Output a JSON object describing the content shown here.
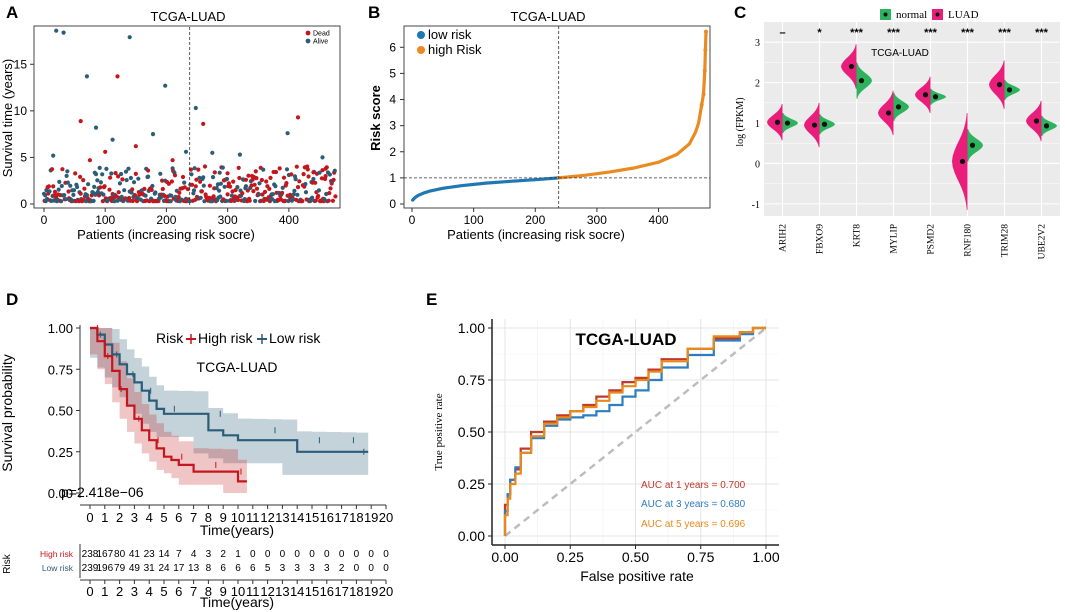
{
  "panels": {
    "A": {
      "letter": "A",
      "title": "TCGA-LUAD",
      "xlabel": "Patients (increasing risk socre)",
      "ylabel": "Survival time (years)",
      "xticks": [
        "0",
        "100",
        "200",
        "300",
        "400"
      ],
      "yticks": [
        "0",
        "5",
        "10",
        "15"
      ],
      "legend": [
        {
          "label": "Dead",
          "color": "#c4161c"
        },
        {
          "label": "Alive",
          "color": "#2a5d78"
        }
      ]
    },
    "B": {
      "letter": "B",
      "title": "TCGA-LUAD",
      "xlabel": "Patients (increasing risk socre)",
      "ylabel": "Risk score",
      "xticks": [
        "0",
        "100",
        "200",
        "300",
        "400"
      ],
      "yticks": [
        "0",
        "1",
        "2",
        "3",
        "4",
        "5",
        "6"
      ],
      "legend": [
        {
          "label": "low risk",
          "color": "#1f77b4"
        },
        {
          "label": "high Risk",
          "color": "#ec8a22"
        }
      ]
    },
    "C": {
      "letter": "C",
      "title": "TCGA-LUAD",
      "ylabel": "log (FPKM)",
      "legend": [
        {
          "label": "normal",
          "color": "#2db35d"
        },
        {
          "label": "LUAD",
          "color": "#e91e7a"
        }
      ],
      "yticks": [
        "-1",
        "0",
        "1",
        "2",
        "3"
      ]
    },
    "D": {
      "letter": "D",
      "title": "TCGA-LUAD",
      "ylabel": "Survival probability",
      "xlabel": "Time(years)",
      "legend_title": "Risk",
      "legend": [
        {
          "label": "High risk",
          "color": "#c4161c"
        },
        {
          "label": "Low risk",
          "color": "#2a5d78"
        }
      ],
      "pvalue": "p=2.418e−06",
      "yticks": [
        "0.00",
        "0.25",
        "0.50",
        "0.75",
        "1.00"
      ],
      "xticks": [
        "0",
        "1",
        "2",
        "3",
        "4",
        "5",
        "6",
        "7",
        "8",
        "9",
        "10",
        "11",
        "12",
        "13",
        "14",
        "15",
        "16",
        "17",
        "18",
        "19",
        "20"
      ],
      "table_ylabel": "Risk",
      "table_xlabel": "Time(years)",
      "table_rows": [
        {
          "label": "High risk",
          "color": "#c4161c",
          "values": [
            "238",
            "167",
            "80",
            "41",
            "23",
            "14",
            "7",
            "4",
            "3",
            "2",
            "1",
            "0",
            "0",
            "0",
            "0",
            "0",
            "0",
            "0",
            "0",
            "0",
            "0"
          ]
        },
        {
          "label": "Low risk",
          "color": "#2a5d78",
          "values": [
            "239",
            "196",
            "79",
            "49",
            "31",
            "24",
            "17",
            "13",
            "8",
            "6",
            "6",
            "6",
            "5",
            "3",
            "3",
            "3",
            "3",
            "2",
            "0",
            "0",
            "0"
          ]
        }
      ]
    },
    "E": {
      "letter": "E",
      "title": "TCGA-LUAD",
      "xlabel": "False positive rate",
      "ylabel": "True positive rate",
      "ticks": [
        "0.00",
        "0.25",
        "0.50",
        "0.75",
        "1.00"
      ],
      "auc": [
        {
          "label": "AUC at 1 years = 0.700",
          "color": "#c0392b"
        },
        {
          "label": "AUC at 3 years = 0.680",
          "color": "#2e7dc0"
        },
        {
          "label": "AUC at 5 years = 0.696",
          "color": "#e88a1a"
        }
      ]
    }
  },
  "chart_data": [
    {
      "type": "scatter",
      "panel": "A",
      "title": "TCGA-LUAD",
      "xlabel": "Patients (increasing risk socre)",
      "ylabel": "Survival time (years)",
      "xlim": [
        0,
        477
      ],
      "ylim": [
        0,
        19
      ],
      "series": [
        {
          "name": "Dead",
          "values": [
            [
              60,
              8.9
            ],
            [
              75,
              4.7
            ],
            [
              120,
              13.7
            ],
            [
              150,
              6.2
            ],
            [
              170,
              3.6
            ],
            [
              260,
              8.6
            ],
            [
              300,
              3.3
            ],
            [
              330,
              2.6
            ],
            [
              415,
              9.3
            ],
            [
              440,
              3.4
            ],
            [
              460,
              3.0
            ],
            [
              100,
              5.6
            ],
            [
              210,
              4.7
            ],
            [
              370,
              2.8
            ]
          ]
        },
        {
          "name": "Alive",
          "values": [
            [
              20,
              18.6
            ],
            [
              32,
              18.4
            ],
            [
              70,
              13.7
            ],
            [
              140,
              17.9
            ],
            [
              198,
              12.7
            ],
            [
              248,
              10.3
            ],
            [
              85,
              8.2
            ],
            [
              178,
              7.5
            ],
            [
              398,
              7.6
            ],
            [
              275,
              5.5
            ],
            [
              112,
              6.9
            ],
            [
              320,
              5.3
            ],
            [
              455,
              5.0
            ],
            [
              15,
              5.2
            ],
            [
              232,
              5.6
            ]
          ]
        }
      ]
    },
    {
      "type": "line",
      "panel": "B",
      "title": "TCGA-LUAD",
      "xlabel": "Patients (increasing risk socre)",
      "ylabel": "Risk score",
      "xlim": [
        0,
        477
      ],
      "ylim": [
        0,
        6.7
      ],
      "cutoff_x": 238,
      "cutoff_y": 1.0,
      "series": [
        {
          "name": "low risk",
          "x": [
            1,
            5,
            10,
            20,
            30,
            50,
            80,
            120,
            160,
            200,
            238
          ],
          "values": [
            0.15,
            0.25,
            0.33,
            0.43,
            0.5,
            0.6,
            0.7,
            0.8,
            0.87,
            0.93,
            1.0
          ]
        },
        {
          "name": "high Risk",
          "x": [
            238,
            280,
            320,
            360,
            400,
            430,
            450,
            460,
            465,
            470,
            473,
            475,
            476,
            477
          ],
          "values": [
            1.0,
            1.1,
            1.22,
            1.38,
            1.6,
            1.9,
            2.3,
            2.75,
            3.1,
            3.8,
            4.2,
            5.1,
            5.9,
            6.6
          ]
        }
      ]
    },
    {
      "type": "violin",
      "panel": "C",
      "title": "TCGA-LUAD",
      "ylabel": "log (FPKM)",
      "ylim": [
        -1.3,
        3.5
      ],
      "categories": [
        "ARIH2",
        "FBXO9",
        "KRT8",
        "MYLIP",
        "PSMD2",
        "RNF180",
        "TRIM28",
        "UBE2V2"
      ],
      "significance": [
        "–",
        "*",
        "***",
        "***",
        "***",
        "***",
        "***",
        "***"
      ],
      "series": [
        {
          "name": "normal",
          "values": [
            1.0,
            0.97,
            2.05,
            1.4,
            1.65,
            0.45,
            1.82,
            0.93
          ]
        },
        {
          "name": "LUAD",
          "values": [
            1.02,
            0.95,
            2.4,
            1.25,
            1.7,
            0.05,
            1.95,
            1.05
          ]
        }
      ]
    },
    {
      "type": "line",
      "panel": "D",
      "title": "TCGA-LUAD",
      "xlabel": "Time(years)",
      "ylabel": "Survival probability",
      "xlim": [
        0,
        20
      ],
      "ylim": [
        0,
        1
      ],
      "series": [
        {
          "name": "High risk",
          "x": [
            0,
            0.5,
            1,
            1.5,
            2,
            2.5,
            3,
            3.5,
            4,
            4.5,
            5,
            5.5,
            6,
            7,
            8,
            9,
            10,
            10.6
          ],
          "values": [
            1.0,
            0.92,
            0.83,
            0.74,
            0.63,
            0.53,
            0.45,
            0.38,
            0.32,
            0.27,
            0.22,
            0.2,
            0.17,
            0.13,
            0.13,
            0.13,
            0.07,
            0.07
          ]
        },
        {
          "name": "Low risk",
          "x": [
            0,
            0.5,
            1,
            1.5,
            2,
            2.5,
            3,
            3.5,
            4,
            4.5,
            5,
            6,
            7,
            8,
            9,
            10,
            11,
            12,
            13,
            14,
            15,
            16,
            17,
            18,
            18.8
          ],
          "values": [
            1.0,
            0.96,
            0.9,
            0.84,
            0.78,
            0.72,
            0.67,
            0.62,
            0.56,
            0.51,
            0.48,
            0.48,
            0.48,
            0.38,
            0.35,
            0.32,
            0.32,
            0.32,
            0.32,
            0.25,
            0.25,
            0.25,
            0.25,
            0.25,
            0.25
          ]
        }
      ]
    },
    {
      "type": "line",
      "panel": "E",
      "title": "TCGA-LUAD",
      "xlabel": "False positive rate",
      "ylabel": "True positive rate",
      "xlim": [
        0,
        1
      ],
      "ylim": [
        0,
        1
      ],
      "series": [
        {
          "name": "AUC at 1 years = 0.700",
          "x": [
            0,
            0.01,
            0.02,
            0.04,
            0.06,
            0.1,
            0.15,
            0.2,
            0.25,
            0.3,
            0.35,
            0.4,
            0.45,
            0.5,
            0.55,
            0.6,
            0.7,
            0.8,
            0.9,
            0.95,
            1.0
          ],
          "values": [
            0,
            0.15,
            0.2,
            0.27,
            0.32,
            0.42,
            0.5,
            0.55,
            0.58,
            0.6,
            0.63,
            0.67,
            0.7,
            0.74,
            0.76,
            0.8,
            0.85,
            0.9,
            0.95,
            0.98,
            1.0
          ]
        },
        {
          "name": "AUC at 3 years = 0.680",
          "x": [
            0,
            0.01,
            0.02,
            0.04,
            0.06,
            0.1,
            0.15,
            0.2,
            0.25,
            0.3,
            0.35,
            0.4,
            0.45,
            0.5,
            0.55,
            0.6,
            0.7,
            0.8,
            0.9,
            0.95,
            1.0
          ],
          "values": [
            0,
            0.12,
            0.2,
            0.27,
            0.33,
            0.4,
            0.47,
            0.53,
            0.56,
            0.57,
            0.58,
            0.6,
            0.63,
            0.67,
            0.7,
            0.75,
            0.81,
            0.87,
            0.94,
            0.97,
            1.0
          ]
        },
        {
          "name": "AUC at 5 years = 0.696",
          "x": [
            0,
            0.01,
            0.02,
            0.04,
            0.06,
            0.1,
            0.15,
            0.2,
            0.25,
            0.3,
            0.35,
            0.4,
            0.45,
            0.5,
            0.55,
            0.6,
            0.7,
            0.8,
            0.9,
            0.95,
            1.0
          ],
          "values": [
            0,
            0.1,
            0.18,
            0.25,
            0.3,
            0.4,
            0.48,
            0.54,
            0.57,
            0.6,
            0.62,
            0.65,
            0.69,
            0.72,
            0.75,
            0.79,
            0.84,
            0.9,
            0.96,
            0.98,
            1.0
          ]
        }
      ]
    }
  ]
}
